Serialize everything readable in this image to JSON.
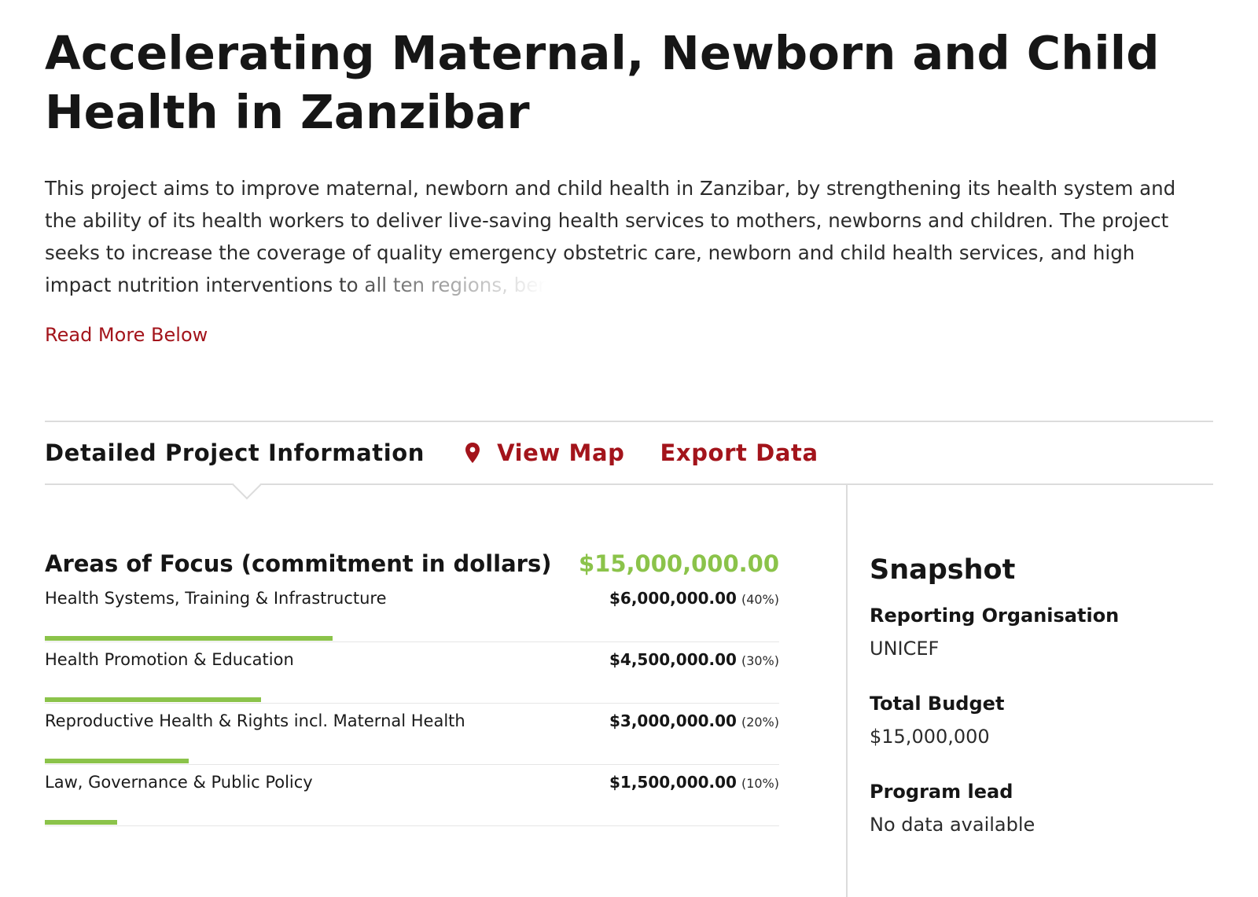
{
  "project": {
    "title": "Accelerating Maternal, Newborn and Child Health in Zanzibar",
    "intro_main": "This project aims to improve maternal, newborn and child health in Zanzibar, by strengthening its health system and the ability of its health workers to deliver live-saving health services to mothers, newborns and children. The project seeks to increase the coverage of quality emergency obstetric care, newborn and child health services, and high impact nutrition ",
    "intro_faded": "interventions to all ten regions, ber",
    "read_more": "Read More Below"
  },
  "tabs": {
    "title": "Detailed Project Information",
    "view_map": "View Map",
    "export": "Export Data",
    "icons": {
      "view_map": "map-pin-icon"
    }
  },
  "focus": {
    "title": "Areas of Focus (commitment in dollars)",
    "total": "$15,000,000.00",
    "items": [
      {
        "label": "Health Systems, Training & Infrastructure",
        "amount": "$6,000,000.00",
        "pct_label": "(40%)",
        "share": 0.4
      },
      {
        "label": "Health Promotion & Education",
        "amount": "$4,500,000.00",
        "pct_label": "(30%)",
        "share": 0.3
      },
      {
        "label": "Reproductive Health & Rights incl. Maternal Health",
        "amount": "$3,000,000.00",
        "pct_label": "(20%)",
        "share": 0.2
      },
      {
        "label": "Law, Governance & Public Policy",
        "amount": "$1,500,000.00",
        "pct_label": "(10%)",
        "share": 0.1
      }
    ]
  },
  "snapshot": {
    "title": "Snapshot",
    "reporting_org_label": "Reporting Organisation",
    "reporting_org_value": "UNICEF",
    "budget_label": "Total Budget",
    "budget_value": "$15,000,000",
    "lead_label": "Program lead",
    "lead_value": "No data available"
  },
  "colors": {
    "accent_red": "#a3141b",
    "accent_green": "#8bc34a"
  }
}
